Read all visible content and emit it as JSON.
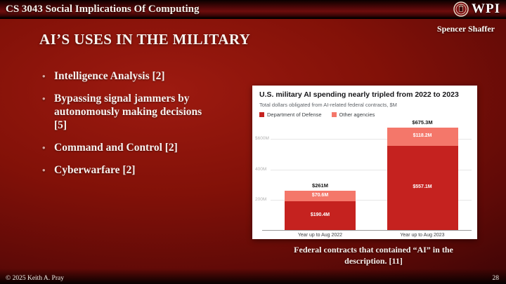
{
  "header": {
    "course_title": "CS 3043 Social Implications Of Computing",
    "logo_text": "WPI",
    "author": "Spencer Shaffer"
  },
  "slide": {
    "title": "AI’S USES IN THE MILITARY",
    "bullets": [
      "Intelligence Analysis [2]",
      "Bypassing signal jammers by autonomously making decisions [5]",
      "Command and Control [2]",
      "Cyberwarfare [2]"
    ],
    "caption_lines": [
      "Federal contracts that contained “AI” in the",
      "description. [11]"
    ]
  },
  "footer": {
    "copyright": "© 2025 Keith A. Pray",
    "page_number": "28"
  },
  "chart_data": {
    "type": "bar",
    "stacked": true,
    "title": "U.S. military AI spending nearly tripled from 2022 to 2023",
    "subtitle": "Total dollars obligated from AI-related federal contracts, $M",
    "categories": [
      "Year up to Aug 2022",
      "Year up to Aug 2023"
    ],
    "series": [
      {
        "name": "Department of Defense",
        "color": "#c5221f",
        "values": [
          190.4,
          557.1
        ],
        "labels": [
          "$190.4M",
          "$557.1M"
        ]
      },
      {
        "name": "Other agencies",
        "color": "#f4776a",
        "values": [
          70.6,
          118.2
        ],
        "labels": [
          "$70.6M",
          "$118.2M"
        ]
      }
    ],
    "totals": [
      261,
      675.3
    ],
    "total_labels": [
      "$261M",
      "$675.3M"
    ],
    "y_ticks": [
      {
        "value": 200,
        "label": "200M"
      },
      {
        "value": 400,
        "label": "400M"
      },
      {
        "value": 600,
        "label": "$600M"
      }
    ],
    "ylim": [
      0,
      690
    ],
    "grid": true,
    "legend_position": "top-left",
    "xlabel": "",
    "ylabel": ""
  }
}
